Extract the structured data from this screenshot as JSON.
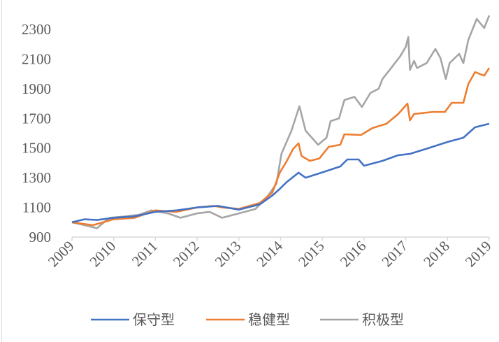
{
  "chart_data": {
    "type": "line",
    "title": "",
    "xlabel": "",
    "ylabel": "",
    "xlim": [
      2009,
      2019
    ],
    "ylim": [
      900,
      2300
    ],
    "grid": false,
    "legend_position": "bottom",
    "x_ticks": [
      "2009",
      "2010",
      "2011",
      "2012",
      "2013",
      "2014",
      "2015",
      "2016",
      "2017",
      "2018",
      "2019"
    ],
    "y_ticks": [
      "900",
      "1100",
      "1300",
      "1500",
      "1700",
      "1900",
      "2100",
      "2300"
    ],
    "series": [
      {
        "name": "保守型",
        "color": "#4472C4",
        "points": [
          [
            2009.0,
            1000
          ],
          [
            2009.3,
            1020
          ],
          [
            2009.6,
            1015
          ],
          [
            2010.0,
            1030
          ],
          [
            2010.5,
            1040
          ],
          [
            2011.0,
            1070
          ],
          [
            2011.5,
            1080
          ],
          [
            2012.0,
            1100
          ],
          [
            2012.5,
            1110
          ],
          [
            2013.0,
            1085
          ],
          [
            2013.5,
            1120
          ],
          [
            2013.8,
            1180
          ],
          [
            2013.98,
            1225
          ],
          [
            2014.15,
            1272
          ],
          [
            2014.43,
            1334
          ],
          [
            2014.6,
            1300
          ],
          [
            2014.98,
            1334
          ],
          [
            2015.43,
            1376
          ],
          [
            2015.6,
            1423
          ],
          [
            2015.87,
            1423
          ],
          [
            2016.0,
            1381
          ],
          [
            2016.44,
            1414
          ],
          [
            2016.82,
            1452
          ],
          [
            2017.1,
            1461
          ],
          [
            2017.54,
            1499
          ],
          [
            2018.0,
            1541
          ],
          [
            2018.38,
            1570
          ],
          [
            2018.66,
            1640
          ],
          [
            2019.0,
            1664
          ]
        ]
      },
      {
        "name": "稳健型",
        "color": "#ED7D31",
        "points": [
          [
            2009.0,
            1000
          ],
          [
            2009.5,
            980
          ],
          [
            2010.0,
            1020
          ],
          [
            2010.5,
            1030
          ],
          [
            2011.0,
            1080
          ],
          [
            2011.5,
            1070
          ],
          [
            2012.0,
            1100
          ],
          [
            2012.4,
            1110
          ],
          [
            2012.6,
            1100
          ],
          [
            2013.0,
            1090
          ],
          [
            2013.5,
            1130
          ],
          [
            2013.8,
            1200
          ],
          [
            2013.98,
            1334
          ],
          [
            2014.15,
            1414
          ],
          [
            2014.3,
            1494
          ],
          [
            2014.43,
            1532
          ],
          [
            2014.5,
            1447
          ],
          [
            2014.7,
            1414
          ],
          [
            2014.93,
            1430
          ],
          [
            2015.15,
            1508
          ],
          [
            2015.43,
            1522
          ],
          [
            2015.53,
            1593
          ],
          [
            2015.93,
            1588
          ],
          [
            2016.2,
            1635
          ],
          [
            2016.54,
            1664
          ],
          [
            2016.82,
            1730
          ],
          [
            2017.04,
            1800
          ],
          [
            2017.1,
            1687
          ],
          [
            2017.2,
            1730
          ],
          [
            2017.66,
            1744
          ],
          [
            2017.94,
            1744
          ],
          [
            2018.1,
            1805
          ],
          [
            2018.38,
            1805
          ],
          [
            2018.5,
            1932
          ],
          [
            2018.66,
            2012
          ],
          [
            2018.88,
            1988
          ],
          [
            2019.0,
            2040
          ]
        ]
      },
      {
        "name": "积极型",
        "color": "#A5A5A5",
        "points": [
          [
            2009.0,
            1000
          ],
          [
            2009.3,
            980
          ],
          [
            2009.6,
            960
          ],
          [
            2009.9,
            1030
          ],
          [
            2010.3,
            1040
          ],
          [
            2010.6,
            1050
          ],
          [
            2010.9,
            1080
          ],
          [
            2011.3,
            1060
          ],
          [
            2011.6,
            1030
          ],
          [
            2012.0,
            1060
          ],
          [
            2012.3,
            1070
          ],
          [
            2012.6,
            1030
          ],
          [
            2013.0,
            1060
          ],
          [
            2013.4,
            1090
          ],
          [
            2013.7,
            1180
          ],
          [
            2013.9,
            1260
          ],
          [
            2014.02,
            1461
          ],
          [
            2014.26,
            1617
          ],
          [
            2014.45,
            1782
          ],
          [
            2014.6,
            1617
          ],
          [
            2014.9,
            1522
          ],
          [
            2015.1,
            1570
          ],
          [
            2015.2,
            1682
          ],
          [
            2015.4,
            1700
          ],
          [
            2015.53,
            1824
          ],
          [
            2015.77,
            1845
          ],
          [
            2015.95,
            1777
          ],
          [
            2016.15,
            1871
          ],
          [
            2016.35,
            1900
          ],
          [
            2016.44,
            1965
          ],
          [
            2016.65,
            2040
          ],
          [
            2016.87,
            2120
          ],
          [
            2017.0,
            2182
          ],
          [
            2017.06,
            2248
          ],
          [
            2017.1,
            2027
          ],
          [
            2017.2,
            2088
          ],
          [
            2017.27,
            2040
          ],
          [
            2017.5,
            2073
          ],
          [
            2017.71,
            2168
          ],
          [
            2017.83,
            2107
          ],
          [
            2017.96,
            1965
          ],
          [
            2018.05,
            2073
          ],
          [
            2018.28,
            2135
          ],
          [
            2018.38,
            2073
          ],
          [
            2018.5,
            2229
          ],
          [
            2018.7,
            2370
          ],
          [
            2018.88,
            2309
          ],
          [
            2019.0,
            2394
          ]
        ]
      }
    ]
  }
}
